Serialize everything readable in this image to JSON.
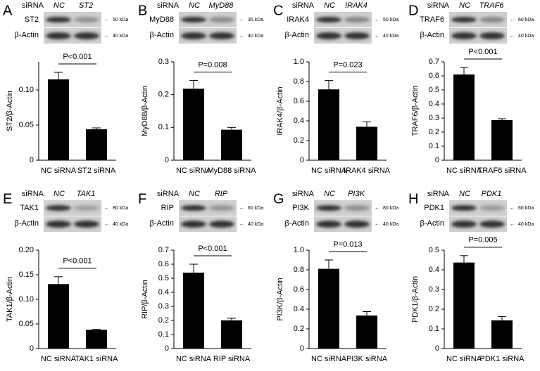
{
  "chart_data": [
    {
      "type": "bar",
      "panel": "A",
      "blot": {
        "siRNA": "siRNA",
        "control": "NC",
        "target": "ST2",
        "protein": "ST2",
        "protein_kda": "50 kDa",
        "actin": "β-Actin",
        "actin_kda": "40 kDa"
      },
      "ylabel": "ST2/β-Actin",
      "annotation": "P<0.001",
      "categories": [
        "NC siRNA",
        "ST2 siRNA"
      ],
      "values": [
        0.115,
        0.044
      ],
      "errors": [
        0.01,
        0.002
      ],
      "color": "#000000",
      "ylim": [
        0,
        0.14
      ],
      "yticks": [
        0,
        0.05,
        {
          "value": 0.1,
          "label": "0.10"
        }
      ]
    },
    {
      "type": "bar",
      "panel": "B",
      "blot": {
        "siRNA": "siRNA",
        "control": "NC",
        "target": "MyD88",
        "protein": "MyD88",
        "protein_kda": "35 kDa",
        "actin": "β-Actin",
        "actin_kda": "40 kDa"
      },
      "ylabel": "MyD88/β-Actin",
      "annotation": "P=0.008",
      "categories": [
        "NC siRNA",
        "MyD88 siRNA"
      ],
      "values": [
        0.218,
        0.093
      ],
      "errors": [
        0.025,
        0.007
      ],
      "color": "#000000",
      "ylim": [
        0,
        0.3
      ],
      "yticks": [
        0,
        0.1,
        0.2,
        0.3
      ]
    },
    {
      "type": "bar",
      "panel": "C",
      "blot": {
        "siRNA": "siRNA",
        "control": "NC",
        "target": "IRAK4",
        "protein": "IRAK4",
        "protein_kda": "50 kDa",
        "actin": "β-Actin",
        "actin_kda": "40 kDa"
      },
      "ylabel": "IRAK4/β-Actin",
      "annotation": "P=0.023",
      "categories": [
        "NC siRNA",
        "IRAK4 siRNA"
      ],
      "values": [
        0.72,
        0.34
      ],
      "errors": [
        0.09,
        0.05
      ],
      "color": "#000000",
      "ylim": [
        0,
        1.0
      ],
      "yticks": [
        0,
        0.2,
        0.4,
        0.6,
        0.8,
        {
          "value": 1.0,
          "label": "1.0"
        }
      ]
    },
    {
      "type": "bar",
      "panel": "D",
      "blot": {
        "siRNA": "siRNA",
        "control": "NC",
        "target": "TRAF6",
        "protein": "TRAF6",
        "protein_kda": "60 kDa",
        "actin": "β-Actin",
        "actin_kda": "40 kDa"
      },
      "ylabel": "TRAF6/β-Actin",
      "annotation": "P<0.001",
      "categories": [
        "NC siRNA",
        "TRAF6 siRNA"
      ],
      "values": [
        0.61,
        0.285
      ],
      "errors": [
        0.05,
        0.01
      ],
      "color": "#000000",
      "ylim": [
        0,
        0.7
      ],
      "yticks": [
        0,
        0.1,
        0.2,
        0.3,
        0.4,
        0.5,
        0.6,
        0.7
      ]
    },
    {
      "type": "bar",
      "panel": "E",
      "blot": {
        "siRNA": "siRNA",
        "control": "NC",
        "target": "TAK1",
        "protein": "TAK1",
        "protein_kda": "80 kDa",
        "actin": "β-Actin",
        "actin_kda": "40 kDa"
      },
      "ylabel": "TAK1/β-Actin",
      "annotation": "P<0.001",
      "categories": [
        "NC siRNA",
        "TAK1 siRNA"
      ],
      "values": [
        0.131,
        0.038
      ],
      "errors": [
        0.015,
        0.001
      ],
      "color": "#000000",
      "ylim": [
        0,
        0.2
      ],
      "yticks": [
        0,
        0.05,
        {
          "value": 0.1,
          "label": "0.10"
        },
        0.15,
        {
          "value": 0.2,
          "label": "0.20"
        }
      ]
    },
    {
      "type": "bar",
      "panel": "F",
      "blot": {
        "siRNA": "siRNA",
        "control": "NC",
        "target": "RIP",
        "protein": "RIP",
        "protein_kda": "60 kDa",
        "actin": "β-Actin",
        "actin_kda": "40 kDa"
      },
      "ylabel": "RIP/β-Actin",
      "annotation": "P<0.001",
      "categories": [
        "NC siRNA",
        "RIP siRNA"
      ],
      "values": [
        0.54,
        0.2
      ],
      "errors": [
        0.06,
        0.015
      ],
      "color": "#000000",
      "ylim": [
        0,
        0.7
      ],
      "yticks": [
        0,
        0.1,
        0.2,
        0.3,
        0.4,
        0.5,
        0.6,
        0.7
      ]
    },
    {
      "type": "bar",
      "panel": "G",
      "blot": {
        "siRNA": "siRNA",
        "control": "NC",
        "target": "PI3K",
        "protein": "PI3K",
        "protein_kda": "80 kDa",
        "actin": "β-Actin",
        "actin_kda": "40 kDa"
      },
      "ylabel": "PI3K/β-Actin",
      "annotation": "P=0.013",
      "categories": [
        "NC siRNA",
        "PI3K siRNA"
      ],
      "values": [
        0.81,
        0.335
      ],
      "errors": [
        0.09,
        0.04
      ],
      "color": "#000000",
      "ylim": [
        0,
        1.0
      ],
      "yticks": [
        0,
        0.2,
        0.4,
        0.6,
        0.8,
        {
          "value": 1.0,
          "label": "1.0"
        }
      ]
    },
    {
      "type": "bar",
      "panel": "H",
      "blot": {
        "siRNA": "siRNA",
        "control": "NC",
        "target": "PDK1",
        "protein": "PDK1",
        "protein_kda": "60 kDa",
        "actin": "β-Actin",
        "actin_kda": "40 kDa"
      },
      "ylabel": "PDK1/β-Actin",
      "annotation": "P=0.005",
      "categories": [
        "NC siRNA",
        "PDK1 siRNA"
      ],
      "values": [
        0.437,
        0.143
      ],
      "errors": [
        0.035,
        0.02
      ],
      "color": "#000000",
      "ylim": [
        0,
        0.5
      ],
      "yticks": [
        0,
        0.1,
        0.2,
        0.3,
        0.4,
        0.5
      ]
    }
  ]
}
